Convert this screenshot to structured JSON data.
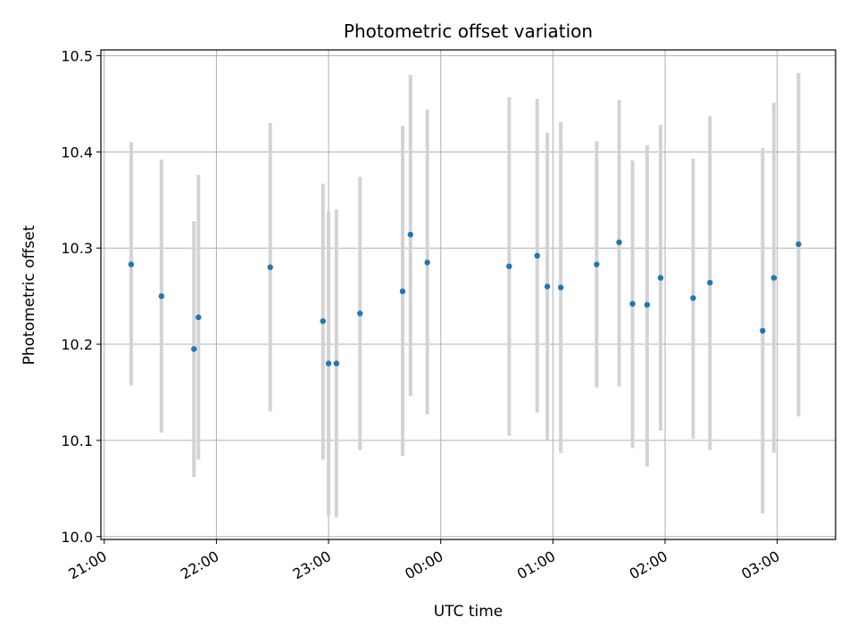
{
  "chart_data": {
    "type": "scatter",
    "title": "Photometric offset variation",
    "xlabel": "UTC time",
    "ylabel": "Photometric offset",
    "grid": true,
    "xlim_hours": [
      20.97,
      27.52
    ],
    "ylim": [
      9.997,
      10.506
    ],
    "x_ticks": [
      {
        "hour": 21,
        "label": "21:00"
      },
      {
        "hour": 22,
        "label": "22:00"
      },
      {
        "hour": 23,
        "label": "23:00"
      },
      {
        "hour": 24,
        "label": "00:00"
      },
      {
        "hour": 25,
        "label": "01:00"
      },
      {
        "hour": 26,
        "label": "02:00"
      },
      {
        "hour": 27,
        "label": "03:00"
      }
    ],
    "y_ticks": [
      {
        "value": 10.0,
        "label": "10.0"
      },
      {
        "value": 10.1,
        "label": "10.1"
      },
      {
        "value": 10.2,
        "label": "10.2"
      },
      {
        "value": 10.3,
        "label": "10.3"
      },
      {
        "value": 10.4,
        "label": "10.4"
      },
      {
        "value": 10.5,
        "label": "10.5"
      }
    ],
    "point_color": "#1f77b4",
    "errorbar_color": "#d3d3d3",
    "points": [
      {
        "time": "21:14",
        "hour": 21.24,
        "y": 10.283,
        "lo": 10.157,
        "hi": 10.41
      },
      {
        "time": "21:30",
        "hour": 21.51,
        "y": 10.25,
        "lo": 10.108,
        "hi": 10.392
      },
      {
        "time": "21:48",
        "hour": 21.8,
        "y": 10.195,
        "lo": 10.062,
        "hi": 10.328
      },
      {
        "time": "21:50",
        "hour": 21.84,
        "y": 10.228,
        "lo": 10.08,
        "hi": 10.376
      },
      {
        "time": "22:29",
        "hour": 22.48,
        "y": 10.28,
        "lo": 10.13,
        "hi": 10.43
      },
      {
        "time": "22:56",
        "hour": 22.95,
        "y": 10.224,
        "lo": 10.08,
        "hi": 10.367
      },
      {
        "time": "23:00",
        "hour": 23.0,
        "y": 10.18,
        "lo": 10.022,
        "hi": 10.338
      },
      {
        "time": "23:04",
        "hour": 23.07,
        "y": 10.18,
        "lo": 10.02,
        "hi": 10.34
      },
      {
        "time": "23:17",
        "hour": 23.28,
        "y": 10.232,
        "lo": 10.09,
        "hi": 10.374
      },
      {
        "time": "23:39",
        "hour": 23.66,
        "y": 10.255,
        "lo": 10.084,
        "hi": 10.427
      },
      {
        "time": "23:44",
        "hour": 23.73,
        "y": 10.314,
        "lo": 10.146,
        "hi": 10.48
      },
      {
        "time": "23:53",
        "hour": 23.88,
        "y": 10.285,
        "lo": 10.127,
        "hi": 10.444
      },
      {
        "time": "00:36",
        "hour": 24.61,
        "y": 10.281,
        "lo": 10.105,
        "hi": 10.457
      },
      {
        "time": "00:51",
        "hour": 24.86,
        "y": 10.292,
        "lo": 10.129,
        "hi": 10.455
      },
      {
        "time": "00:57",
        "hour": 24.95,
        "y": 10.26,
        "lo": 10.1,
        "hi": 10.42
      },
      {
        "time": "01:04",
        "hour": 25.07,
        "y": 10.259,
        "lo": 10.087,
        "hi": 10.431
      },
      {
        "time": "01:23",
        "hour": 25.39,
        "y": 10.283,
        "lo": 10.155,
        "hi": 10.411
      },
      {
        "time": "01:35",
        "hour": 25.59,
        "y": 10.306,
        "lo": 10.156,
        "hi": 10.454
      },
      {
        "time": "01:42",
        "hour": 25.71,
        "y": 10.242,
        "lo": 10.092,
        "hi": 10.391
      },
      {
        "time": "01:50",
        "hour": 25.84,
        "y": 10.241,
        "lo": 10.073,
        "hi": 10.407
      },
      {
        "time": "01:57",
        "hour": 25.96,
        "y": 10.269,
        "lo": 10.11,
        "hi": 10.428
      },
      {
        "time": "02:14",
        "hour": 26.25,
        "y": 10.248,
        "lo": 10.102,
        "hi": 10.393
      },
      {
        "time": "02:24",
        "hour": 26.4,
        "y": 10.264,
        "lo": 10.09,
        "hi": 10.437
      },
      {
        "time": "02:52",
        "hour": 26.87,
        "y": 10.214,
        "lo": 10.024,
        "hi": 10.404
      },
      {
        "time": "02:58",
        "hour": 26.97,
        "y": 10.269,
        "lo": 10.087,
        "hi": 10.451
      },
      {
        "time": "03:11",
        "hour": 27.19,
        "y": 10.304,
        "lo": 10.125,
        "hi": 10.482
      }
    ]
  }
}
